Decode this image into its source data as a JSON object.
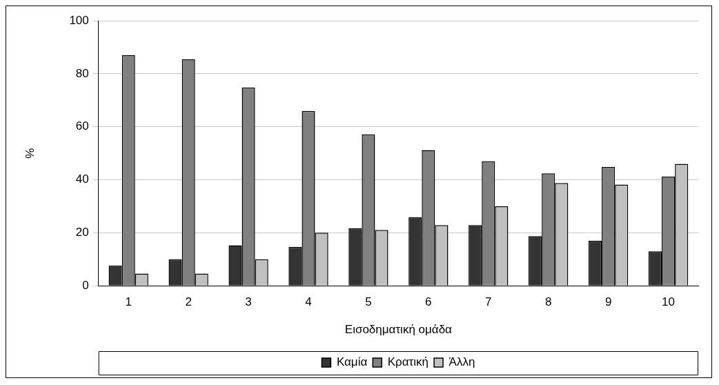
{
  "chart_data": {
    "type": "bar",
    "xlabel": "Εισοδηματική ομάδα",
    "ylabel": "%",
    "categories": [
      "1",
      "2",
      "3",
      "4",
      "5",
      "6",
      "7",
      "8",
      "9",
      "10"
    ],
    "series": [
      {
        "name": "Καμία",
        "color": "#333333",
        "values": [
          7.6,
          10,
          15.3,
          14.7,
          21.7,
          25.8,
          22.9,
          18.7,
          17,
          13
        ]
      },
      {
        "name": "Κρατική",
        "color": "#808080",
        "values": [
          87,
          85.4,
          74.8,
          66,
          57.1,
          51.2,
          47,
          42.4,
          44.8,
          41.2
        ]
      },
      {
        "name": "Άλλη",
        "color": "#c0c0c0",
        "values": [
          4.6,
          4.6,
          10,
          20,
          21.1,
          22.9,
          30,
          38.8,
          38.2,
          46
        ]
      }
    ],
    "ylim": [
      0,
      100
    ],
    "yticks": [
      0,
      20,
      40,
      60,
      80,
      100
    ],
    "grid": "y",
    "legend": "bottom"
  }
}
